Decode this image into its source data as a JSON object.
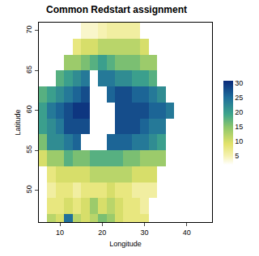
{
  "chart_data": {
    "type": "heatmap",
    "title": "Common Redstart assignment",
    "x_label": "Longitude",
    "y_label": "Latitude",
    "xlim": [
      5,
      46
    ],
    "ylim": [
      46,
      71
    ],
    "xticks": [
      10,
      20,
      30,
      40
    ],
    "yticks": [
      50,
      55,
      60,
      65,
      70
    ],
    "grid": false,
    "cells": {
      "x": [
        4,
        6,
        8,
        10,
        12,
        14,
        16,
        18,
        20,
        22,
        24,
        26,
        28,
        30,
        32,
        34,
        36,
        38
      ],
      "y": [
        46,
        48,
        50,
        52,
        54,
        56,
        58,
        60,
        62,
        64,
        66,
        68,
        70
      ],
      "z": [
        [
          null,
          null,
          12,
          10,
          25,
          12,
          10,
          12,
          16,
          14,
          10,
          8,
          8,
          8,
          null,
          null,
          null,
          null
        ],
        [
          null,
          null,
          8,
          8,
          10,
          8,
          10,
          14,
          10,
          12,
          10,
          8,
          8,
          6,
          null,
          null,
          null,
          null
        ],
        [
          null,
          null,
          6,
          8,
          8,
          6,
          8,
          8,
          8,
          10,
          8,
          8,
          6,
          6,
          6,
          null,
          null,
          null
        ],
        [
          null,
          null,
          8,
          10,
          10,
          10,
          10,
          12,
          12,
          12,
          12,
          12,
          10,
          10,
          10,
          null,
          null,
          null
        ],
        [
          null,
          10,
          14,
          14,
          18,
          16,
          16,
          18,
          18,
          18,
          18,
          16,
          16,
          14,
          14,
          14,
          null,
          null
        ],
        [
          null,
          16,
          22,
          22,
          24,
          26,
          null,
          null,
          null,
          26,
          26,
          26,
          24,
          24,
          22,
          20,
          null,
          null
        ],
        [
          null,
          20,
          22,
          24,
          28,
          28,
          28,
          null,
          null,
          null,
          28,
          28,
          28,
          26,
          24,
          24,
          null,
          null
        ],
        [
          null,
          20,
          24,
          26,
          28,
          30,
          30,
          null,
          null,
          null,
          28,
          28,
          28,
          28,
          26,
          26,
          24,
          null
        ],
        [
          null,
          18,
          20,
          22,
          24,
          26,
          28,
          null,
          null,
          26,
          28,
          28,
          26,
          26,
          24,
          22,
          null,
          null
        ],
        [
          null,
          null,
          null,
          18,
          20,
          22,
          24,
          null,
          24,
          24,
          22,
          22,
          20,
          20,
          18,
          null,
          null,
          null
        ],
        [
          null,
          null,
          null,
          null,
          14,
          14,
          16,
          18,
          20,
          18,
          16,
          16,
          16,
          14,
          14,
          null,
          null,
          null
        ],
        [
          null,
          null,
          null,
          null,
          null,
          8,
          10,
          10,
          12,
          12,
          12,
          12,
          12,
          10,
          null,
          null,
          null,
          null
        ],
        [
          null,
          null,
          null,
          null,
          null,
          null,
          4,
          4,
          5,
          6,
          6,
          6,
          6,
          null,
          null,
          null,
          null,
          null
        ]
      ]
    },
    "colorbar": {
      "range": [
        2,
        31
      ],
      "ticks": [
        5,
        10,
        15,
        20,
        25,
        30
      ]
    }
  }
}
